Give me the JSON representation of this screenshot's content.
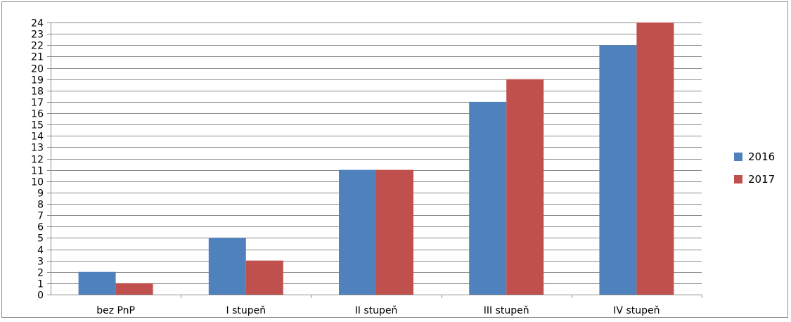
{
  "chart_data": {
    "type": "bar",
    "categories": [
      "bez PnP",
      "I stupeň",
      "II stupeň",
      "III stupeň",
      "IV stupeň"
    ],
    "series": [
      {
        "name": "2016",
        "values": [
          2,
          5,
          11,
          17,
          22
        ],
        "color": "#4f81bd"
      },
      {
        "name": "2017",
        "values": [
          1,
          3,
          11,
          19,
          24
        ],
        "color": "#c0504d"
      }
    ],
    "ylim": [
      0,
      24
    ],
    "ytick_step": 1,
    "grid": true,
    "legend_position": "right"
  }
}
